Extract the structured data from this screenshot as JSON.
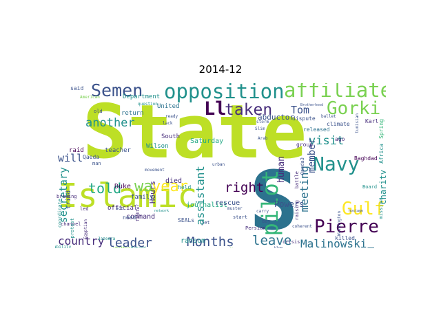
{
  "title": "2014-12",
  "colors": {
    "lime": "#bddf26",
    "green": "#35b779",
    "teal": "#21918c",
    "blue": "#2c728e",
    "slate": "#3b528b",
    "purple": "#472d7b",
    "dark": "#440154",
    "yellow": "#fde725",
    "mint": "#7ad151",
    "aqua": "#22a884"
  },
  "words": [
    {
      "text": "State",
      "color": "lime"
    },
    {
      "text": "Islamic",
      "color": "lime"
    },
    {
      "text": "S",
      "color": "blue"
    },
    {
      "text": "opposition",
      "color": "teal"
    },
    {
      "text": "affiliated",
      "color": "mint"
    },
    {
      "text": "Semen",
      "color": "slate"
    },
    {
      "text": "Ll",
      "color": "dark"
    },
    {
      "text": "taken",
      "color": "purple"
    },
    {
      "text": "Gorki",
      "color": "mint"
    },
    {
      "text": "Tom",
      "color": "slate"
    },
    {
      "text": "pilot",
      "color": "green"
    },
    {
      "text": "Navy",
      "color": "teal"
    },
    {
      "text": "Gulf",
      "color": "yellow"
    },
    {
      "text": "Pierre",
      "color": "dark"
    },
    {
      "text": "year",
      "color": "yellow"
    },
    {
      "text": "wa",
      "color": "mint"
    },
    {
      "text": "told",
      "color": "aqua"
    },
    {
      "text": "Months",
      "color": "slate"
    },
    {
      "text": "leave",
      "color": "blue"
    },
    {
      "text": "leader",
      "color": "slate"
    },
    {
      "text": "country",
      "color": "purple"
    },
    {
      "text": "Malinowski",
      "color": "blue"
    },
    {
      "text": "right",
      "color": "dark"
    },
    {
      "text": "visit",
      "color": "teal"
    },
    {
      "text": "meeting",
      "color": "blue"
    },
    {
      "text": "member",
      "color": "slate"
    },
    {
      "text": "assistant",
      "color": "teal"
    },
    {
      "text": "human",
      "color": "purple"
    },
    {
      "text": "another",
      "color": "teal"
    },
    {
      "text": "will",
      "color": "slate"
    },
    {
      "text": "secretary",
      "color": "teal"
    },
    {
      "text": "abductor",
      "color": "slate"
    },
    {
      "text": "charity",
      "color": "teal"
    },
    {
      "text": "arranged",
      "color": "blue"
    },
    {
      "text": "Powers",
      "color": "slate"
    },
    {
      "text": "Hours",
      "color": "purple"
    },
    {
      "text": "Duke",
      "color": "dark"
    },
    {
      "text": "journalist",
      "color": "aqua"
    },
    {
      "text": "rescue",
      "color": "slate"
    },
    {
      "text": "died",
      "color": "purple"
    },
    {
      "text": "command",
      "color": "purple"
    },
    {
      "text": "ransom",
      "color": "teal"
    },
    {
      "text": "Saturday",
      "color": "aqua"
    },
    {
      "text": "Department",
      "color": "teal"
    },
    {
      "text": "return",
      "color": "blue"
    },
    {
      "text": "United",
      "color": "blue"
    },
    {
      "text": "South",
      "color": "purple"
    },
    {
      "text": "family",
      "color": "slate"
    },
    {
      "text": "official",
      "color": "purple"
    },
    {
      "text": "tried",
      "color": "slate"
    },
    {
      "text": "raid",
      "color": "dark"
    },
    {
      "text": "teacher",
      "color": "slate"
    },
    {
      "text": "Wilson",
      "color": "teal"
    },
    {
      "text": "Qaeda",
      "color": "slate"
    },
    {
      "text": "Baghdad",
      "color": "dark"
    },
    {
      "text": "killed",
      "color": "slate"
    },
    {
      "text": "released",
      "color": "blue"
    },
    {
      "text": "group",
      "color": "purple"
    },
    {
      "text": "dispute",
      "color": "slate"
    },
    {
      "text": "climate",
      "color": "slate"
    },
    {
      "text": "said",
      "color": "slate"
    },
    {
      "text": "need",
      "color": "slate"
    },
    {
      "text": "SEALs",
      "color": "slate"
    },
    {
      "text": "held",
      "color": "teal"
    },
    {
      "text": "Africa",
      "color": "teal"
    },
    {
      "text": "Spring",
      "color": "green"
    },
    {
      "text": "Karl",
      "color": "purple"
    },
    {
      "text": "ago",
      "color": "purple"
    },
    {
      "text": "battle",
      "color": "purple"
    },
    {
      "text": "raising",
      "color": "purple"
    },
    {
      "text": "channel",
      "color": "purple"
    },
    {
      "text": "led",
      "color": "purple"
    },
    {
      "text": "brewing",
      "color": "purple"
    },
    {
      "text": "coordinate",
      "color": "teal"
    },
    {
      "text": "protest",
      "color": "teal"
    },
    {
      "text": "Board",
      "color": "teal"
    },
    {
      "text": "mission",
      "color": "teal"
    },
    {
      "text": "Qaeda3",
      "color": "slate"
    },
    {
      "text": "crisis",
      "color": "purple"
    },
    {
      "text": "jet",
      "color": "slate"
    },
    {
      "text": "start",
      "color": "slate"
    },
    {
      "text": "day",
      "color": "slate"
    },
    {
      "text": "Persian",
      "color": "purple"
    },
    {
      "text": "man",
      "color": "slate"
    },
    {
      "text": "old",
      "color": "slate"
    },
    {
      "text": "Ran",
      "color": "slate"
    },
    {
      "text": "urban",
      "color": "slate"
    },
    {
      "text": "act",
      "color": "slate"
    },
    {
      "text": "ready",
      "color": "slate"
    },
    {
      "text": "lack",
      "color": "slate"
    },
    {
      "text": "Slim",
      "color": "slate"
    },
    {
      "text": "Arab",
      "color": "slate"
    },
    {
      "text": "storm",
      "color": "slate"
    },
    {
      "text": "tunisian",
      "color": "slate"
    },
    {
      "text": "ballet",
      "color": "slate"
    },
    {
      "text": "coherent",
      "color": "slate"
    },
    {
      "text": "whether",
      "color": "mint"
    },
    {
      "text": "American",
      "color": "mint"
    },
    {
      "text": "movement",
      "color": "slate"
    },
    {
      "text": "Washington",
      "color": "slate"
    },
    {
      "text": "fighter",
      "color": "purple"
    },
    {
      "text": "Egyptian",
      "color": "purple"
    },
    {
      "text": "Jazeera",
      "color": "teal"
    },
    {
      "text": "Batard",
      "color": "teal"
    },
    {
      "text": "question",
      "color": "teal"
    },
    {
      "text": "muster",
      "color": "slate"
    },
    {
      "text": "blow",
      "color": "slate"
    },
    {
      "text": "hostage",
      "color": "slate"
    },
    {
      "text": "ability",
      "color": "teal"
    },
    {
      "text": "network",
      "color": "teal"
    },
    {
      "text": "know",
      "color": "teal"
    },
    {
      "text": "carry",
      "color": "slate"
    },
    {
      "text": "ceasefire",
      "color": "mint"
    },
    {
      "text": "Brotherhood",
      "color": "slate"
    }
  ]
}
